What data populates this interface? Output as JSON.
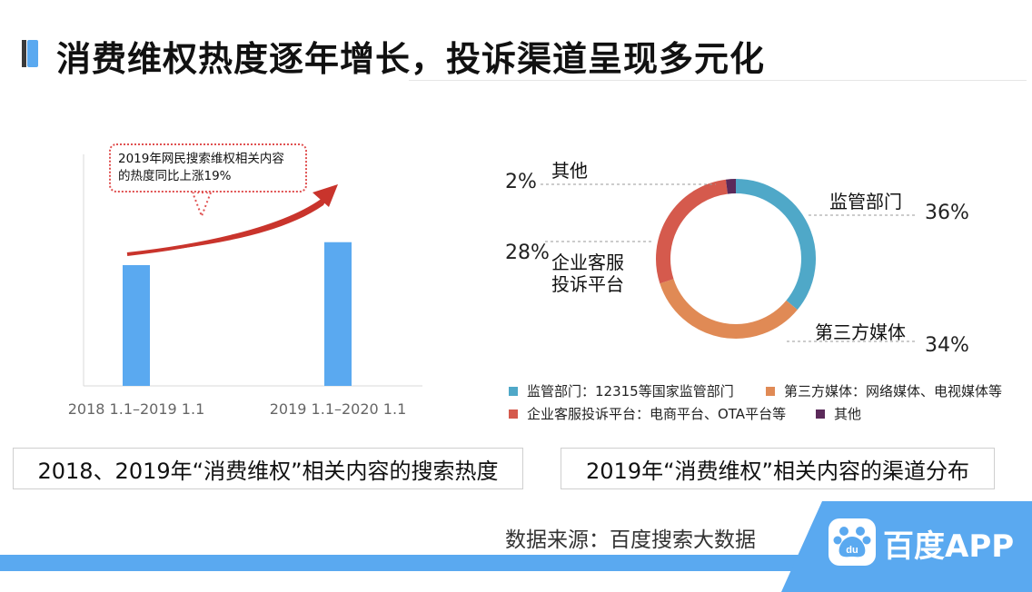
{
  "page_title": "消费维权热度逐年增长，投诉渠道呈现多元化",
  "bar_callout": {
    "line1": "2019年网民搜索维权相关内容",
    "line2": "的热度同比上涨19%"
  },
  "bar_caption": "2018、2019年“消费维权”相关内容的搜索热度",
  "donut_caption": "2019年“消费维权”相关内容的渠道分布",
  "source_text": "数据来源：百度搜索大数据",
  "brand": {
    "name": "百度APP",
    "badge": "du"
  },
  "colors": {
    "bar": "#5aa9f0",
    "arrow": "#c9342c",
    "regulator": "#4fa8c8",
    "media": "#e08a55",
    "enterprise": "#d55a4d",
    "other": "#5b2a5a"
  },
  "chart_data": [
    {
      "type": "bar",
      "categories": [
        "2018 1.1–2019 1.1",
        "2019 1.1–2020 1.1"
      ],
      "values": [
        100,
        119
      ],
      "title": "",
      "xlabel": "",
      "ylabel": "",
      "grid": false,
      "annotation": "2019年网民搜索维权相关内容的热度同比上涨19%"
    },
    {
      "type": "pie",
      "variant": "donut",
      "slices": [
        {
          "key": "regulator",
          "label": "监管部门",
          "value": 36,
          "pct": "36%",
          "legend": "监管部门：12315等国家监管部门"
        },
        {
          "key": "media",
          "label": "第三方媒体",
          "value": 34,
          "pct": "34%",
          "legend": "第三方媒体：网络媒体、电视媒体等"
        },
        {
          "key": "enterprise",
          "label": "企业客服投诉平台",
          "label_line1": "企业客服",
          "label_line2": "投诉平台",
          "value": 28,
          "pct": "28%",
          "legend": "企业客服投诉平台：电商平台、OTA平台等"
        },
        {
          "key": "other",
          "label": "其他",
          "value": 2,
          "pct": "2%",
          "legend": "其他"
        }
      ],
      "legend_position": "bottom"
    }
  ]
}
